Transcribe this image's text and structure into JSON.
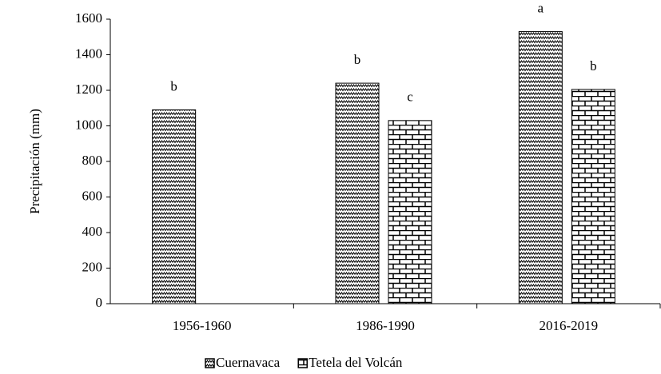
{
  "chart_data": {
    "type": "bar",
    "ylabel": "Precipitación (mm)",
    "categories": [
      "1956-1960",
      "1986-1990",
      "2016-2019"
    ],
    "series": [
      {
        "name": "Cuernavaca",
        "color": "#000000",
        "pattern": "zigzag",
        "values": [
          1090,
          1240,
          1530
        ],
        "letters": [
          "b",
          "b",
          "a"
        ]
      },
      {
        "name": "Tetela del Volcán",
        "color": "#000000",
        "pattern": "brick",
        "values": [
          null,
          1030,
          1205
        ],
        "letters": [
          null,
          "c",
          "b"
        ]
      }
    ],
    "ylim": [
      0,
      1600
    ],
    "yticks": [
      0,
      200,
      400,
      600,
      800,
      1000,
      1200,
      1400,
      1600
    ],
    "grid": false,
    "legend": "bottom"
  }
}
